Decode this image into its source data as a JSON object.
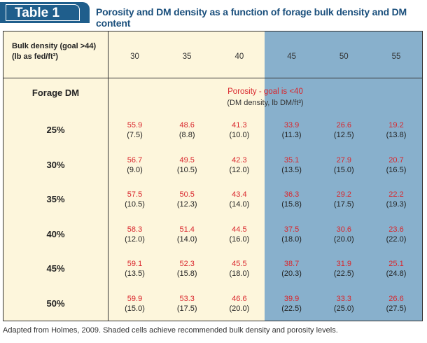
{
  "header": {
    "table_label": "Table 1",
    "title": "Porosity and DM density as a function of forage bulk density and DM content"
  },
  "table": {
    "bulk_label_line1": "Bulk density (goal >44)",
    "bulk_label_line2": "(lb as fed/ft³)",
    "columns": [
      "30",
      "35",
      "40",
      "45",
      "50",
      "55"
    ],
    "forage_dm_label": "Forage DM",
    "porosity_label": "Porosity - goal is <40",
    "dm_density_label": "(DM density, lb DM/ft³)",
    "rows": [
      {
        "label": "25%",
        "cells": [
          [
            "55.9",
            "(7.5)"
          ],
          [
            "48.6",
            "(8.8)"
          ],
          [
            "41.3",
            "(10.0)"
          ],
          [
            "33.9",
            "(11.3)"
          ],
          [
            "26.6",
            "(12.5)"
          ],
          [
            "19.2",
            "(13.8)"
          ]
        ]
      },
      {
        "label": "30%",
        "cells": [
          [
            "56.7",
            "(9.0)"
          ],
          [
            "49.5",
            "(10.5)"
          ],
          [
            "42.3",
            "(12.0)"
          ],
          [
            "35.1",
            "(13.5)"
          ],
          [
            "27.9",
            "(15.0)"
          ],
          [
            "20.7",
            "(16.5)"
          ]
        ]
      },
      {
        "label": "35%",
        "cells": [
          [
            "57.5",
            "(10.5)"
          ],
          [
            "50.5",
            "(12.3)"
          ],
          [
            "43.4",
            "(14.0)"
          ],
          [
            "36.3",
            "(15.8)"
          ],
          [
            "29.2",
            "(17.5)"
          ],
          [
            "22.2",
            "(19.3)"
          ]
        ]
      },
      {
        "label": "40%",
        "cells": [
          [
            "58.3",
            "(12.0)"
          ],
          [
            "51.4",
            "(14.0)"
          ],
          [
            "44.5",
            "(16.0)"
          ],
          [
            "37.5",
            "(18.0)"
          ],
          [
            "30.6",
            "(20.0)"
          ],
          [
            "23.6",
            "(22.0)"
          ]
        ]
      },
      {
        "label": "45%",
        "cells": [
          [
            "59.1",
            "(13.5)"
          ],
          [
            "52.3",
            "(15.8)"
          ],
          [
            "45.5",
            "(18.0)"
          ],
          [
            "38.7",
            "(20.3)"
          ],
          [
            "31.9",
            "(22.5)"
          ],
          [
            "25.1",
            "(24.8)"
          ]
        ]
      },
      {
        "label": "50%",
        "cells": [
          [
            "59.9",
            "(15.0)"
          ],
          [
            "53.3",
            "(17.5)"
          ],
          [
            "46.6",
            "(20.0)"
          ],
          [
            "39.9",
            "(22.5)"
          ],
          [
            "33.3",
            "(25.0)"
          ],
          [
            "26.6",
            "(27.5)"
          ]
        ]
      }
    ]
  },
  "footnote": "Adapted from Holmes, 2009.  Shaded cells achieve recommended bulk density and porosity levels.",
  "colors": {
    "tab": "#1f5e8c",
    "title": "#1a4f7c",
    "background": "#fdf6dc",
    "shaded": "#88b0cc",
    "porosity": "#d9262c"
  }
}
